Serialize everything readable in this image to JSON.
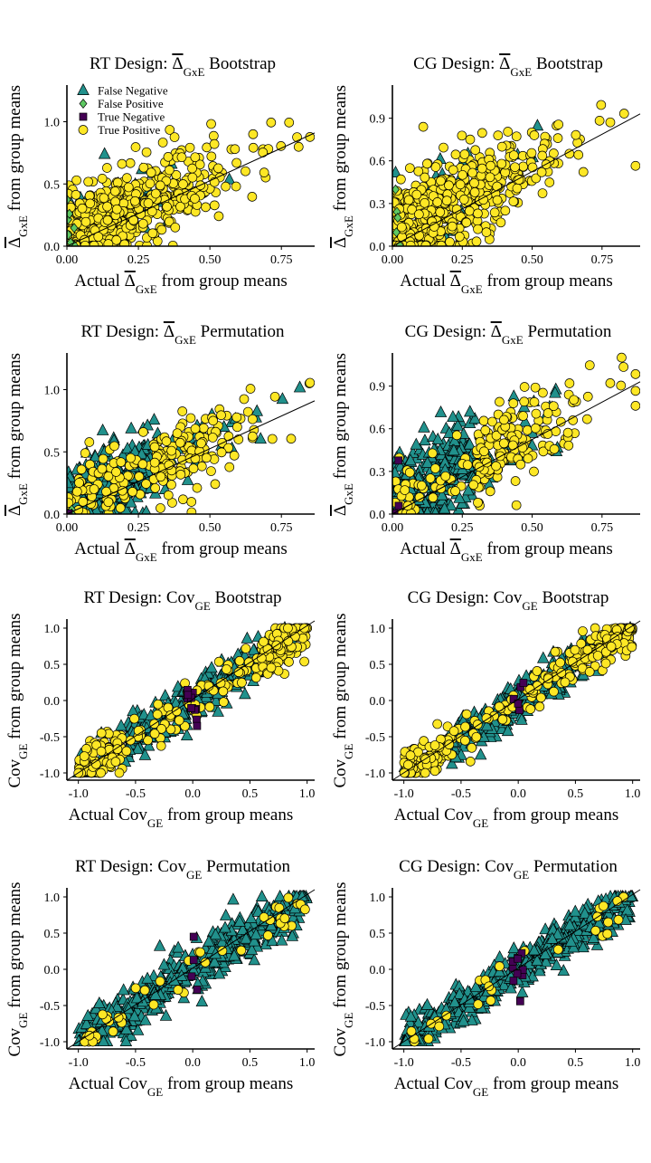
{
  "colors": {
    "false_negative": "#21918c",
    "false_positive": "#5ec962",
    "true_negative": "#440154",
    "true_positive": "#fde725",
    "outline": "#000000"
  },
  "legend": {
    "placement": "top-left",
    "entries": [
      {
        "key": "false_negative",
        "label": "False Negative",
        "shape": "triangle"
      },
      {
        "key": "false_positive",
        "label": "False Positive",
        "shape": "diamond"
      },
      {
        "key": "true_negative",
        "label": "True Negative",
        "shape": "square"
      },
      {
        "key": "true_positive",
        "label": "True Positive",
        "shape": "circle"
      }
    ]
  },
  "chart_data": [
    {
      "type": "scatter",
      "design": "RT",
      "title_prefix": "RT Design: ",
      "metric": "delta",
      "title_suffix": " Bootstrap",
      "xlabel": "Actual ΔGxE from group means",
      "ylabel": "ΔGxE from group means",
      "xlim": [
        0,
        0.86
      ],
      "ylim": [
        0,
        1.28
      ],
      "xticks": [
        "0.00",
        "0.25",
        "0.50",
        "0.75"
      ],
      "yticks": [
        "0.0",
        "0.5",
        "1.0"
      ],
      "identity_line": true,
      "legend": true,
      "grid": false,
      "composition": {
        "false_negative": 0.08,
        "false_positive": 0.02,
        "true_negative": 0.0,
        "true_positive": 0.9
      },
      "noise": 0.17
    },
    {
      "type": "scatter",
      "design": "CG",
      "title_prefix": "CG Design: ",
      "metric": "delta",
      "title_suffix": " Bootstrap",
      "xlabel": "Actual ΔGxE from group means",
      "ylabel": "ΔGxE from group means",
      "xlim": [
        0,
        0.88
      ],
      "ylim": [
        0,
        1.12
      ],
      "xticks": [
        "0.00",
        "0.25",
        "0.50",
        "0.75"
      ],
      "yticks": [
        "0.0",
        "0.3",
        "0.6",
        "0.9"
      ],
      "identity_line": true,
      "legend": false,
      "grid": false,
      "composition": {
        "false_negative": 0.06,
        "false_positive": 0.01,
        "true_negative": 0.01,
        "true_positive": 0.92
      },
      "noise": 0.17
    },
    {
      "type": "scatter",
      "design": "RT",
      "title_prefix": "RT Design: ",
      "metric": "delta",
      "title_suffix": " Permutation",
      "xlabel": "Actual ΔGxE from group means",
      "ylabel": "ΔGxE from group means",
      "xlim": [
        0,
        0.86
      ],
      "ylim": [
        0,
        1.28
      ],
      "xticks": [
        "0.00",
        "0.25",
        "0.50",
        "0.75"
      ],
      "yticks": [
        "0.0",
        "0.5",
        "1.0"
      ],
      "identity_line": true,
      "legend": false,
      "grid": false,
      "composition": {
        "false_negative": 0.45,
        "false_positive": 0.01,
        "true_negative": 0.02,
        "true_positive": 0.52
      },
      "noise": 0.15
    },
    {
      "type": "scatter",
      "design": "CG",
      "title_prefix": "CG Design: ",
      "metric": "delta",
      "title_suffix": " Permutation",
      "xlabel": "Actual ΔGxE from group means",
      "ylabel": "ΔGxE from group means",
      "xlim": [
        0,
        0.88
      ],
      "ylim": [
        0,
        1.12
      ],
      "xticks": [
        "0.00",
        "0.25",
        "0.50",
        "0.75"
      ],
      "yticks": [
        "0.0",
        "0.3",
        "0.6",
        "0.9"
      ],
      "identity_line": true,
      "legend": false,
      "grid": false,
      "composition": {
        "false_negative": 0.5,
        "false_positive": 0.0,
        "true_negative": 0.03,
        "true_positive": 0.47
      },
      "noise": 0.15
    },
    {
      "type": "scatter",
      "design": "RT",
      "title_prefix": "RT Design: ",
      "metric": "cov",
      "title_suffix": " Bootstrap",
      "xlabel": "Actual CovGE from group means",
      "ylabel": "CovGE from group means",
      "xlim": [
        -1.1,
        1.05
      ],
      "ylim": [
        -1.1,
        1.1
      ],
      "xticks": [
        "-1.0",
        "-0.5",
        "0.0",
        "0.5",
        "1.0"
      ],
      "yticks": [
        "-1.0",
        "-0.5",
        "0.0",
        "0.5",
        "1.0"
      ],
      "identity_line": true,
      "legend": false,
      "grid": false,
      "composition": {
        "false_negative": 0.45,
        "false_positive": 0.0,
        "true_negative": 0.02,
        "true_positive": 0.53
      },
      "noise": 0.16
    },
    {
      "type": "scatter",
      "design": "CG",
      "title_prefix": "CG Design: ",
      "metric": "cov",
      "title_suffix": " Bootstrap",
      "xlabel": "Actual CovGE from group means",
      "ylabel": "CovGE from group means",
      "xlim": [
        -1.1,
        1.05
      ],
      "ylim": [
        -1.1,
        1.1
      ],
      "xticks": [
        "-1.0",
        "-0.5",
        "0.0",
        "0.5",
        "1.0"
      ],
      "yticks": [
        "-1.0",
        "-0.5",
        "0.0",
        "0.5",
        "1.0"
      ],
      "identity_line": true,
      "legend": false,
      "grid": false,
      "composition": {
        "false_negative": 0.4,
        "false_positive": 0.0,
        "true_negative": 0.02,
        "true_positive": 0.58
      },
      "noise": 0.14
    },
    {
      "type": "scatter",
      "design": "RT",
      "title_prefix": "RT Design: ",
      "metric": "cov",
      "title_suffix": " Permutation",
      "xlabel": "Actual CovGE from group means",
      "ylabel": "CovGE from group means",
      "xlim": [
        -1.1,
        1.05
      ],
      "ylim": [
        -1.1,
        1.1
      ],
      "xticks": [
        "-1.0",
        "-0.5",
        "0.0",
        "0.5",
        "1.0"
      ],
      "yticks": [
        "-1.0",
        "-0.5",
        "0.0",
        "0.5",
        "1.0"
      ],
      "identity_line": true,
      "legend": false,
      "grid": false,
      "composition": {
        "false_negative": 0.9,
        "false_positive": 0.0,
        "true_negative": 0.02,
        "true_positive": 0.08
      },
      "noise": 0.16
    },
    {
      "type": "scatter",
      "design": "CG",
      "title_prefix": "CG Design: ",
      "metric": "cov",
      "title_suffix": " Permutation",
      "xlabel": "Actual CovGE from group means",
      "ylabel": "CovGE from group means",
      "xlim": [
        -1.1,
        1.05
      ],
      "ylim": [
        -1.1,
        1.1
      ],
      "xticks": [
        "-1.0",
        "-0.5",
        "0.0",
        "0.5",
        "1.0"
      ],
      "yticks": [
        "-1.0",
        "-0.5",
        "0.0",
        "0.5",
        "1.0"
      ],
      "identity_line": true,
      "legend": false,
      "grid": false,
      "composition": {
        "false_negative": 0.93,
        "false_positive": 0.0,
        "true_negative": 0.02,
        "true_positive": 0.05
      },
      "noise": 0.14
    }
  ]
}
